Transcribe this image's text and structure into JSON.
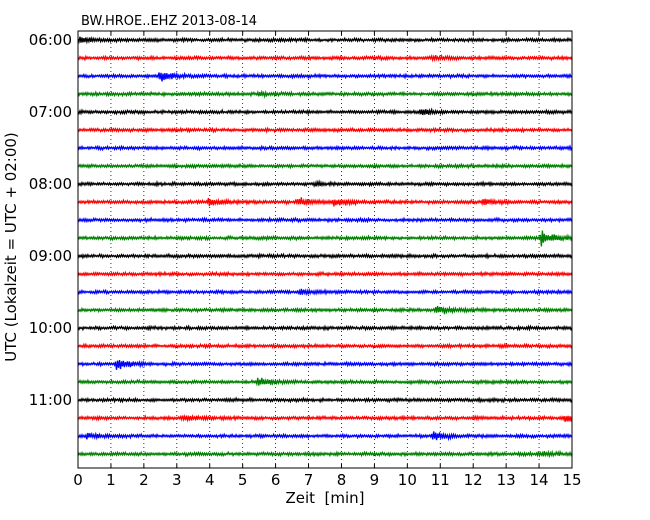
{
  "chart_data": {
    "type": "line",
    "title": "BW.HROE..EHZ 2013-08-14",
    "xlabel": "Zeit  [min]",
    "ylabel": "UTC (Lokalzeit = UTC + 02:00)",
    "xlim": [
      0,
      15
    ],
    "x_ticks": [
      "0",
      "1",
      "2",
      "3",
      "4",
      "5",
      "6",
      "7",
      "8",
      "9",
      "10",
      "11",
      "12",
      "13",
      "14",
      "15"
    ],
    "y_ticks": [
      "06:00",
      "07:00",
      "08:00",
      "09:00",
      "10:00",
      "11:00"
    ],
    "grid": "vertical dotted",
    "colors": [
      "#000000",
      "#ff0000",
      "#0000ff",
      "#008000"
    ],
    "traces": [
      {
        "start": "06:00",
        "color": "#000000",
        "events": [
          {
            "t": 0.1,
            "amp": 0.35
          }
        ]
      },
      {
        "start": "06:15",
        "color": "#ff0000",
        "events": [
          {
            "t": 10.8,
            "amp": 0.2
          }
        ]
      },
      {
        "start": "06:30",
        "color": "#0000ff",
        "events": [
          {
            "t": 2.5,
            "amp": 0.6
          }
        ]
      },
      {
        "start": "06:45",
        "color": "#008000",
        "events": [
          {
            "t": 5.5,
            "amp": 0.2
          }
        ]
      },
      {
        "start": "07:00",
        "color": "#000000",
        "events": [
          {
            "t": 10.4,
            "amp": 0.4
          }
        ]
      },
      {
        "start": "07:15",
        "color": "#ff0000",
        "events": []
      },
      {
        "start": "07:30",
        "color": "#0000ff",
        "events": []
      },
      {
        "start": "07:45",
        "color": "#008000",
        "events": []
      },
      {
        "start": "08:00",
        "color": "#000000",
        "events": [
          {
            "t": 7.2,
            "amp": 0.2
          }
        ]
      },
      {
        "start": "08:15",
        "color": "#ff0000",
        "events": [
          {
            "t": 4.0,
            "amp": 0.45
          },
          {
            "t": 6.7,
            "amp": 0.45
          },
          {
            "t": 7.8,
            "amp": 0.55
          },
          {
            "t": 12.3,
            "amp": 0.35
          }
        ]
      },
      {
        "start": "08:30",
        "color": "#0000ff",
        "events": []
      },
      {
        "start": "08:45",
        "color": "#008000",
        "events": [
          {
            "t": 14.1,
            "amp": 1.0
          }
        ]
      },
      {
        "start": "09:00",
        "color": "#000000",
        "events": []
      },
      {
        "start": "09:15",
        "color": "#ff0000",
        "events": []
      },
      {
        "start": "09:30",
        "color": "#0000ff",
        "events": [
          {
            "t": 6.8,
            "amp": 0.3
          }
        ]
      },
      {
        "start": "09:45",
        "color": "#008000",
        "events": [
          {
            "t": 10.9,
            "amp": 0.55
          }
        ]
      },
      {
        "start": "10:00",
        "color": "#000000",
        "events": []
      },
      {
        "start": "10:15",
        "color": "#ff0000",
        "events": []
      },
      {
        "start": "10:30",
        "color": "#0000ff",
        "events": [
          {
            "t": 1.2,
            "amp": 0.8
          }
        ]
      },
      {
        "start": "10:45",
        "color": "#008000",
        "events": [
          {
            "t": 5.5,
            "amp": 0.5
          }
        ]
      },
      {
        "start": "11:00",
        "color": "#000000",
        "events": []
      },
      {
        "start": "11:15",
        "color": "#ff0000",
        "events": [
          {
            "t": 3.2,
            "amp": 0.3
          },
          {
            "t": 14.8,
            "amp": 0.5
          }
        ]
      },
      {
        "start": "11:30",
        "color": "#0000ff",
        "events": [
          {
            "t": 0.3,
            "amp": 0.35
          },
          {
            "t": 10.8,
            "amp": 0.55
          }
        ]
      },
      {
        "start": "11:45",
        "color": "#008000",
        "events": [
          {
            "t": 14.0,
            "amp": 0.3
          }
        ]
      }
    ]
  }
}
